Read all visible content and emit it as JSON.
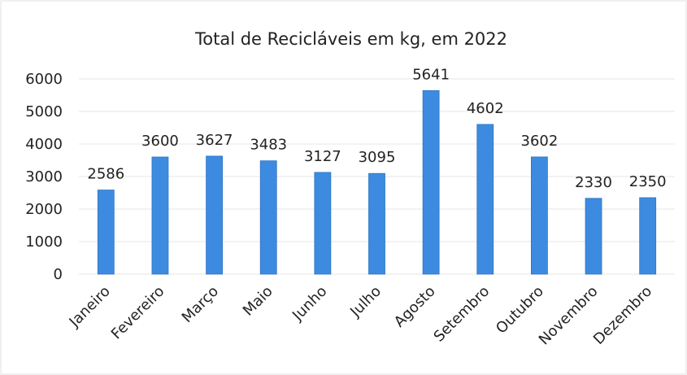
{
  "chart_data": {
    "type": "bar",
    "title": "Total de Recicláveis em kg, em 2022",
    "categories": [
      "Janeiro",
      "Fevereiro",
      "Março",
      "Maio",
      "Junho",
      "Julho",
      "Agosto",
      "Setembro",
      "Outubro",
      "Novembro",
      "Dezembro"
    ],
    "values": [
      2586,
      3600,
      3627,
      3483,
      3127,
      3095,
      5641,
      4602,
      3602,
      2330,
      2350
    ],
    "color": "#3d8be0",
    "ylim": [
      0,
      6000
    ],
    "yticks": [
      0,
      1000,
      2000,
      3000,
      4000,
      5000,
      6000
    ],
    "grid": true,
    "data_labels": true
  }
}
